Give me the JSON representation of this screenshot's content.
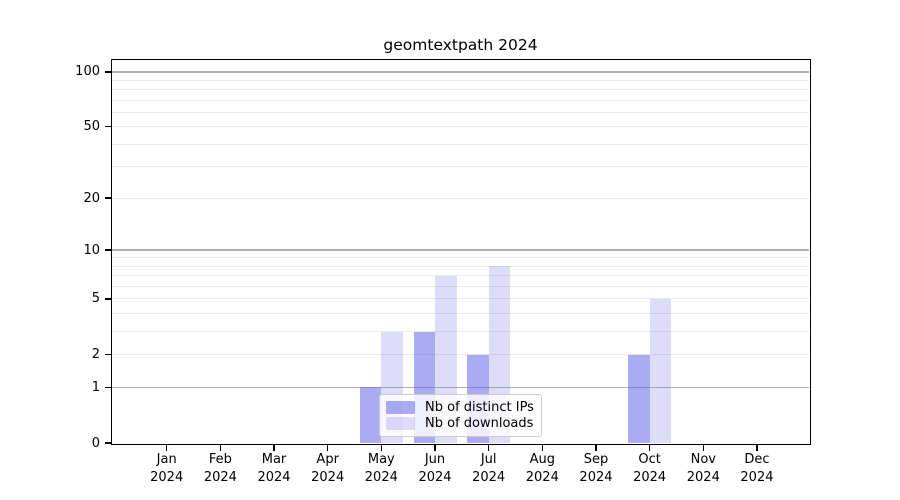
{
  "chart_data": {
    "type": "bar",
    "title": "geomtextpath 2024",
    "x": {
      "categories": [
        {
          "month": "Jan",
          "year": "2024"
        },
        {
          "month": "Feb",
          "year": "2024"
        },
        {
          "month": "Mar",
          "year": "2024"
        },
        {
          "month": "Apr",
          "year": "2024"
        },
        {
          "month": "May",
          "year": "2024"
        },
        {
          "month": "Jun",
          "year": "2024"
        },
        {
          "month": "Jul",
          "year": "2024"
        },
        {
          "month": "Aug",
          "year": "2024"
        },
        {
          "month": "Sep",
          "year": "2024"
        },
        {
          "month": "Oct",
          "year": "2024"
        },
        {
          "month": "Nov",
          "year": "2024"
        },
        {
          "month": "Dec",
          "year": "2024"
        }
      ]
    },
    "y": {
      "scale": "log1p",
      "lim": [
        0,
        116
      ],
      "tick_values": [
        0,
        1,
        2,
        5,
        10,
        20,
        50,
        100
      ],
      "tick_labels": [
        "0",
        "1",
        "2",
        "5",
        "10",
        "20",
        "50",
        "100"
      ],
      "major_grid_values": [
        1,
        10,
        100
      ],
      "minor_grid_values": [
        2,
        3,
        4,
        5,
        6,
        7,
        8,
        9,
        20,
        30,
        40,
        50,
        60,
        70,
        80,
        90
      ]
    },
    "series": [
      {
        "name": "Nb of distinct IPs",
        "color": "#6666e6",
        "alpha": 0.55,
        "values": [
          0,
          0,
          0,
          0,
          1,
          3,
          2,
          0,
          0,
          2,
          0,
          0
        ]
      },
      {
        "name": "Nb of downloads",
        "color": "#6666e6",
        "alpha": 0.22,
        "values": [
          0,
          0,
          0,
          0,
          3,
          7,
          8,
          0,
          0,
          5,
          0,
          0
        ]
      }
    ],
    "legend": {
      "position": "lower center",
      "items": [
        "Nb of distinct IPs",
        "Nb of downloads"
      ]
    },
    "grid": true
  },
  "colors": {
    "background": "#ffffff",
    "spine": "#000000",
    "major_grid": "#b2b2b2",
    "minor_grid": "#e8e8e8",
    "text": "#000000",
    "legend_border": "#cccccc"
  }
}
